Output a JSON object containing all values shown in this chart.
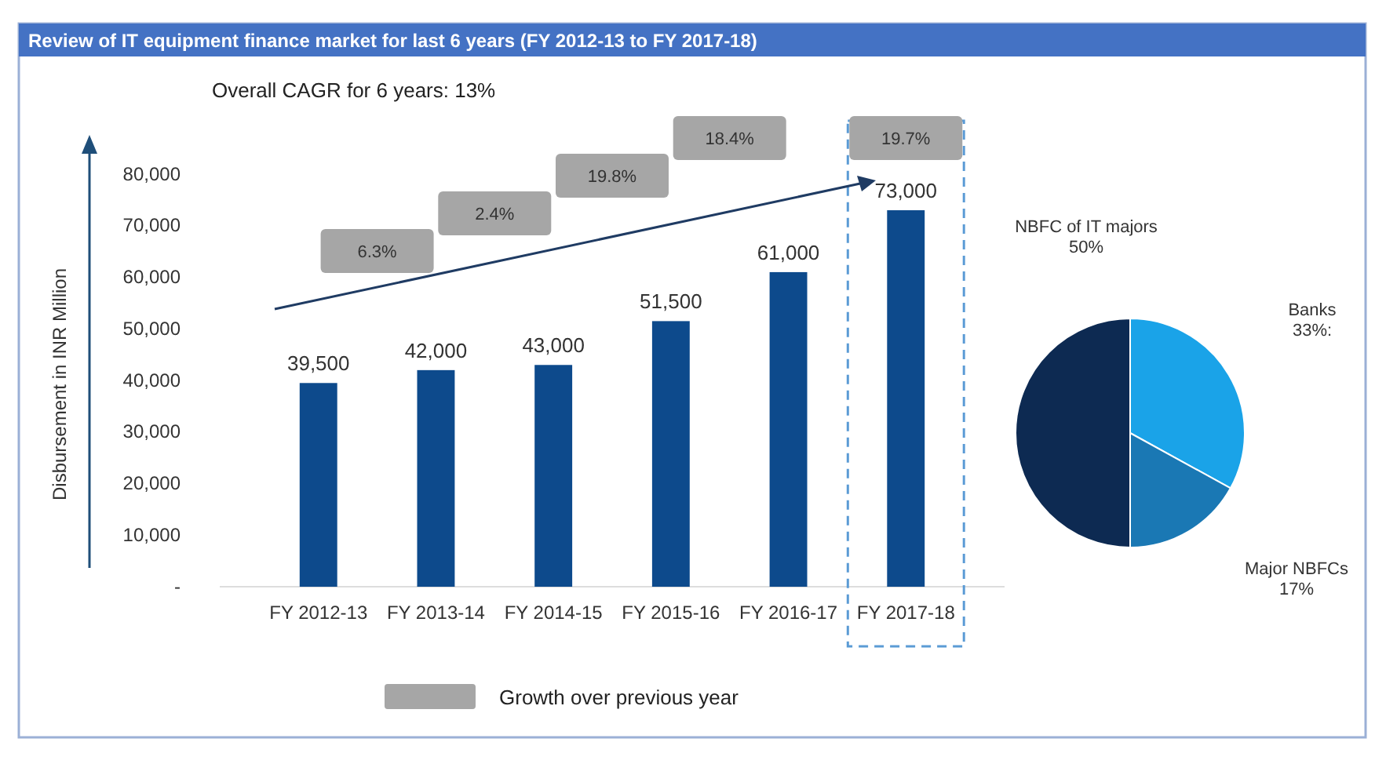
{
  "chart_data": [
    {
      "type": "bar",
      "title": "Review of IT equipment finance market for last 6 years (FY 2012-13 to FY 2017-18)",
      "ylabel": "Disbursement in INR Million",
      "categories": [
        "FY 2012-13",
        "FY 2013-14",
        "FY 2014-15",
        "FY 2015-16",
        "FY 2016-17",
        "FY 2017-18"
      ],
      "values": [
        39500,
        42000,
        43000,
        51500,
        61000,
        73000
      ],
      "color": "#0d4a8c",
      "value_labels": [
        "39,500",
        "42,000",
        "43,000",
        "51,500",
        "61,000",
        "73,000"
      ],
      "ylim": [
        0,
        80000
      ],
      "yticks": [
        {
          "value": 0,
          "label": "-"
        },
        {
          "value": 10000,
          "label": "10,000"
        },
        {
          "value": 20000,
          "label": "20,000"
        },
        {
          "value": 30000,
          "label": "30,000"
        },
        {
          "value": 40000,
          "label": "40,000"
        },
        {
          "value": 50000,
          "label": "50,000"
        },
        {
          "value": 60000,
          "label": "60,000"
        },
        {
          "value": 70000,
          "label": "70,000"
        },
        {
          "value": 80000,
          "label": "80,000"
        }
      ],
      "annotations": [
        "Overall CAGR for 6 years: 13%",
        "6.3%",
        "2.4%",
        "19.8%",
        "18.4%",
        "19.7%",
        "Growth over previous year"
      ]
    },
    {
      "type": "pie",
      "categories": [
        "Banks",
        "Major NBFCs",
        "NBFC of IT majors"
      ],
      "values": [
        33,
        17,
        50
      ],
      "value_labels": [
        "33%:",
        "17%",
        "50%"
      ],
      "colors": [
        "#1aa3e8",
        "#1a78b4",
        "#0d2a52"
      ]
    }
  ]
}
